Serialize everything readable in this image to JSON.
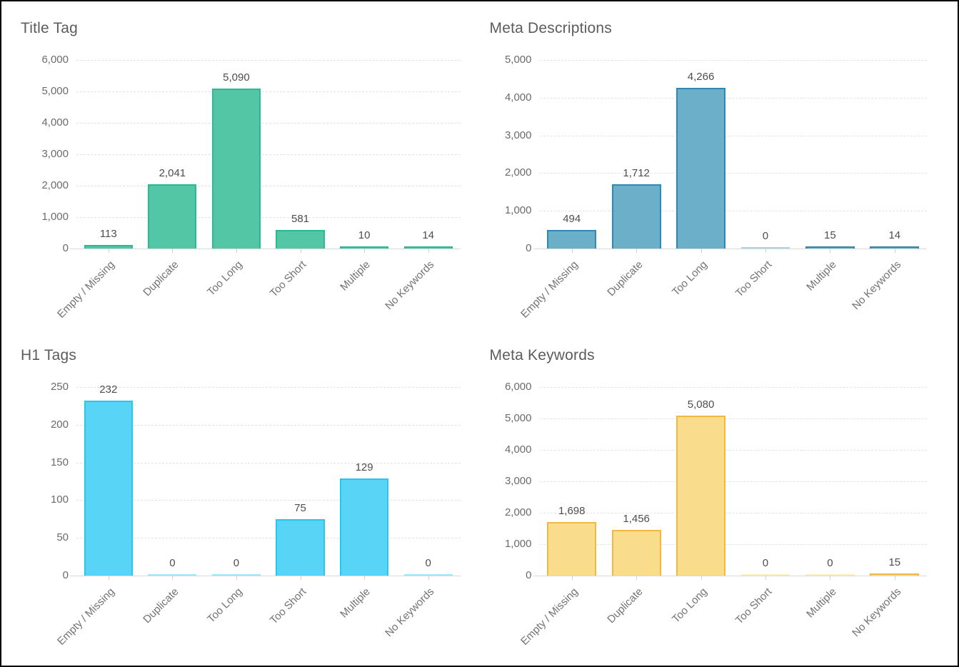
{
  "page": {
    "background": "#ffffff",
    "border_color": "#000000"
  },
  "chart_data": [
    {
      "type": "bar",
      "title": "Title Tag",
      "categories": [
        "Empty / Missing",
        "Duplicate",
        "Too Long",
        "Too Short",
        "Multiple",
        "No Keywords"
      ],
      "values": [
        113,
        2041,
        5090,
        581,
        10,
        14
      ],
      "value_labels": [
        "113",
        "2,041",
        "5,090",
        "581",
        "10",
        "14"
      ],
      "xlabel": "",
      "ylabel": "",
      "ylim": [
        0,
        6000
      ],
      "yticks": [
        0,
        1000,
        2000,
        3000,
        4000,
        5000,
        6000
      ],
      "ytick_labels": [
        "0",
        "1,000",
        "2,000",
        "3,000",
        "4,000",
        "5,000",
        "6,000"
      ],
      "grid": true,
      "legend": false,
      "bar_fill": "#53C6A6",
      "bar_border": "#2ABB95"
    },
    {
      "type": "bar",
      "title": "Meta Descriptions",
      "categories": [
        "Empty / Missing",
        "Duplicate",
        "Too Long",
        "Too Short",
        "Multiple",
        "No Keywords"
      ],
      "values": [
        494,
        1712,
        4266,
        0,
        15,
        14
      ],
      "value_labels": [
        "494",
        "1,712",
        "4,266",
        "0",
        "15",
        "14"
      ],
      "xlabel": "",
      "ylabel": "",
      "ylim": [
        0,
        5000
      ],
      "yticks": [
        0,
        1000,
        2000,
        3000,
        4000,
        5000
      ],
      "ytick_labels": [
        "0",
        "1,000",
        "2,000",
        "3,000",
        "4,000",
        "5,000"
      ],
      "grid": true,
      "legend": false,
      "bar_fill": "#6BAFC9",
      "bar_border": "#3088B3"
    },
    {
      "type": "bar",
      "title": "H1 Tags",
      "categories": [
        "Empty / Missing",
        "Duplicate",
        "Too Long",
        "Too Short",
        "Multiple",
        "No Keywords"
      ],
      "values": [
        232,
        0,
        0,
        75,
        129,
        0
      ],
      "value_labels": [
        "232",
        "0",
        "0",
        "75",
        "129",
        "0"
      ],
      "xlabel": "",
      "ylabel": "",
      "ylim": [
        0,
        250
      ],
      "yticks": [
        0,
        50,
        100,
        150,
        200,
        250
      ],
      "ytick_labels": [
        "0",
        "50",
        "100",
        "150",
        "200",
        "250"
      ],
      "grid": true,
      "legend": false,
      "bar_fill": "#58D5F6",
      "bar_border": "#27C6EF"
    },
    {
      "type": "bar",
      "title": "Meta Keywords",
      "categories": [
        "Empty / Missing",
        "Duplicate",
        "Too Long",
        "Too Short",
        "Multiple",
        "No Keywords"
      ],
      "values": [
        1698,
        1456,
        5080,
        0,
        0,
        15
      ],
      "value_labels": [
        "1,698",
        "1,456",
        "5,080",
        "0",
        "0",
        "15"
      ],
      "xlabel": "",
      "ylabel": "",
      "ylim": [
        0,
        6000
      ],
      "yticks": [
        0,
        1000,
        2000,
        3000,
        4000,
        5000,
        6000
      ],
      "ytick_labels": [
        "0",
        "1,000",
        "2,000",
        "3,000",
        "4,000",
        "5,000",
        "6,000"
      ],
      "grid": true,
      "legend": false,
      "bar_fill": "#FADC8D",
      "bar_border": "#EFB942"
    }
  ]
}
